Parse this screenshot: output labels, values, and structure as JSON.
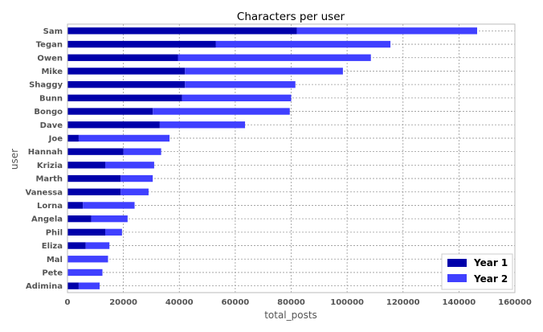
{
  "chart_data": {
    "type": "bar",
    "orientation": "horizontal",
    "stacked": true,
    "title": "Characters per user",
    "xlabel": "total_posts",
    "ylabel": "user",
    "xlim": [
      0,
      160000
    ],
    "xticks": [
      0,
      20000,
      40000,
      60000,
      80000,
      100000,
      120000,
      140000,
      160000
    ],
    "grid": true,
    "legend_position": "bottom-right",
    "categories": [
      "Sam",
      "Tegan",
      "Owen",
      "Mike",
      "Shaggy",
      "Bunn",
      "Bongo",
      "Dave",
      "Joe",
      "Hannah",
      "Krizia",
      "Marth",
      "Vanessa",
      "Lorna",
      "Angela",
      "Phil",
      "Eliza",
      "Mal",
      "Pete",
      "Adimina"
    ],
    "series": [
      {
        "name": "Year 1",
        "color": "#0000aa",
        "values": [
          82000,
          53000,
          39500,
          42000,
          42000,
          41000,
          30500,
          33000,
          4000,
          20000,
          13500,
          19000,
          19000,
          5500,
          8500,
          13500,
          6500,
          0,
          0,
          4000
        ]
      },
      {
        "name": "Year 2",
        "color": "#4040ff",
        "values": [
          64500,
          62500,
          69000,
          56500,
          39500,
          39000,
          49000,
          30500,
          32500,
          13500,
          17500,
          11500,
          10000,
          18500,
          13000,
          6000,
          8500,
          14500,
          12500,
          7500
        ]
      }
    ]
  }
}
